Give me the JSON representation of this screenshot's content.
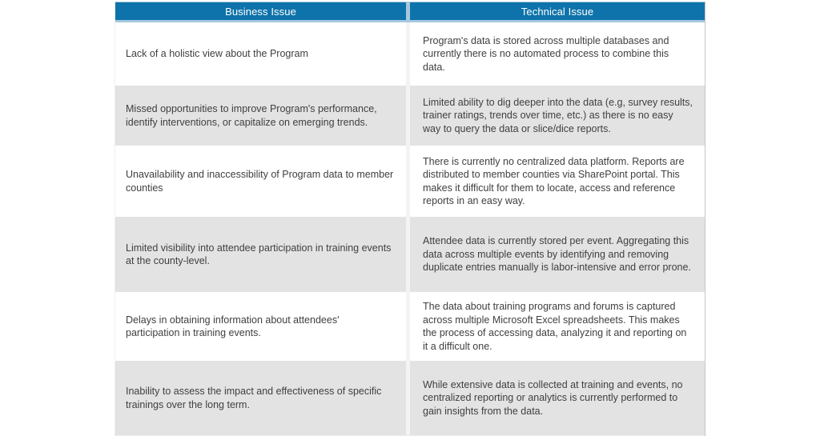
{
  "table": {
    "columns": [
      {
        "id": "business",
        "label": "Business Issue"
      },
      {
        "id": "technical",
        "label": "Technical Issue"
      }
    ],
    "rows": [
      {
        "business": "Lack of a holistic view about the Program",
        "technical": "Program's data is stored across multiple databases and currently there is no automated process to combine this data."
      },
      {
        "business": "Missed opportunities to improve Program's performance, identify interventions, or capitalize on emerging trends.",
        "technical": "Limited ability to dig deeper into the data (e.g, survey results, trainer ratings, trends over time, etc.) as there is no easy way to query the data or slice/dice reports."
      },
      {
        "business": "Unavailability and inaccessibility of Program data to member counties",
        "technical": "There is currently no centralized data platform. Reports are distributed to member counties via SharePoint portal. This makes it difficult for them to locate, access and reference reports in an easy way."
      },
      {
        "business": "Limited visibility into attendee participation in training events at the county-level.",
        "technical": "Attendee data is currently stored per event. Aggregating this data across multiple events by identifying and removing duplicate entries manually is labor-intensive and error prone."
      },
      {
        "business": "Delays in obtaining information about attendees' participation in training events.",
        "technical": "The data about training programs and forums is captured across multiple Microsoft Excel spreadsheets. This makes the process of accessing data, analyzing it and reporting on it a difficult one."
      },
      {
        "business": "Inability to assess the impact and effectiveness of specific trainings over the long term.",
        "technical": "While extensive data is collected at training and events, no centralized reporting or analytics is currently performed to gain insights from the data."
      }
    ]
  },
  "colors": {
    "header_background": "#0e73aa",
    "header_text": "#ffffff",
    "header_border": "#a6c8de",
    "row_even_background": "#ffffff",
    "row_odd_background": "#e3e3e3",
    "body_text": "#3f3f3f",
    "column_divider": "#f3f3f3"
  }
}
